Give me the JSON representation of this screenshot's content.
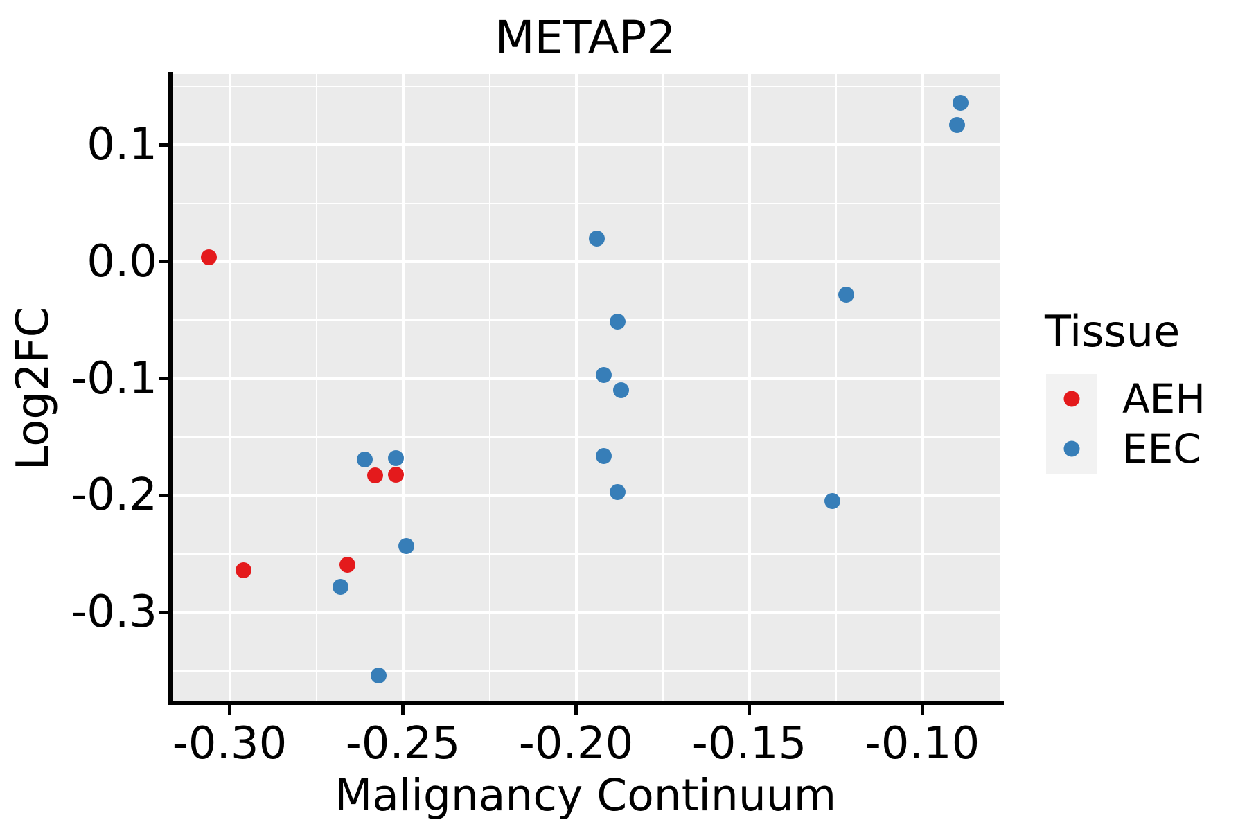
{
  "chart_data": {
    "type": "scatter",
    "title": "METAP2",
    "xlabel": "Malignancy Continuum",
    "ylabel": "Log2FC",
    "xlim": [
      -0.3169,
      -0.0777
    ],
    "ylim": [
      -0.3775,
      0.1606
    ],
    "grid": "on",
    "x_major_ticks": [
      -0.3,
      -0.25,
      -0.2,
      -0.15,
      -0.1
    ],
    "x_tick_labels": [
      "-0.30",
      "-0.25",
      "-0.20",
      "-0.15",
      "-0.10"
    ],
    "x_minor_ticks": [
      -0.275,
      -0.225,
      -0.175,
      -0.125
    ],
    "y_major_ticks": [
      0.1,
      0.0,
      -0.1,
      -0.2,
      -0.3
    ],
    "y_tick_labels": [
      "0.1",
      "0.0",
      "-0.1",
      "-0.2",
      "-0.3"
    ],
    "y_minor_ticks": [
      0.15,
      0.05,
      -0.05,
      -0.15,
      -0.25,
      -0.35
    ],
    "legend": {
      "title": "Tissue",
      "position": "right",
      "entries": [
        {
          "label": "AEH",
          "color": "#E41A1C"
        },
        {
          "label": "EEC",
          "color": "#377EB8"
        }
      ]
    },
    "series": [
      {
        "name": "AEH",
        "color": "#E41A1C",
        "points": [
          [
            -0.306,
            0.004
          ],
          [
            -0.296,
            -0.264
          ],
          [
            -0.266,
            -0.259
          ],
          [
            -0.258,
            -0.183
          ],
          [
            -0.252,
            -0.182
          ]
        ]
      },
      {
        "name": "EEC",
        "color": "#377EB8",
        "points": [
          [
            -0.268,
            -0.278
          ],
          [
            -0.261,
            -0.169
          ],
          [
            -0.252,
            -0.168
          ],
          [
            -0.249,
            -0.243
          ],
          [
            -0.257,
            -0.354
          ],
          [
            -0.194,
            0.02
          ],
          [
            -0.188,
            -0.051
          ],
          [
            -0.192,
            -0.097
          ],
          [
            -0.187,
            -0.11
          ],
          [
            -0.192,
            -0.166
          ],
          [
            -0.188,
            -0.197
          ],
          [
            -0.126,
            -0.205
          ],
          [
            -0.122,
            -0.028
          ],
          [
            -0.089,
            0.136
          ],
          [
            -0.09,
            0.117
          ]
        ]
      }
    ],
    "colors": {
      "panel_background": "#EBEBEB",
      "gridline": "#FFFFFF",
      "axis": "#000000",
      "text": "#000000",
      "legend_key_background": "#F2F2F2"
    },
    "marker_diameter_px": 23
  }
}
